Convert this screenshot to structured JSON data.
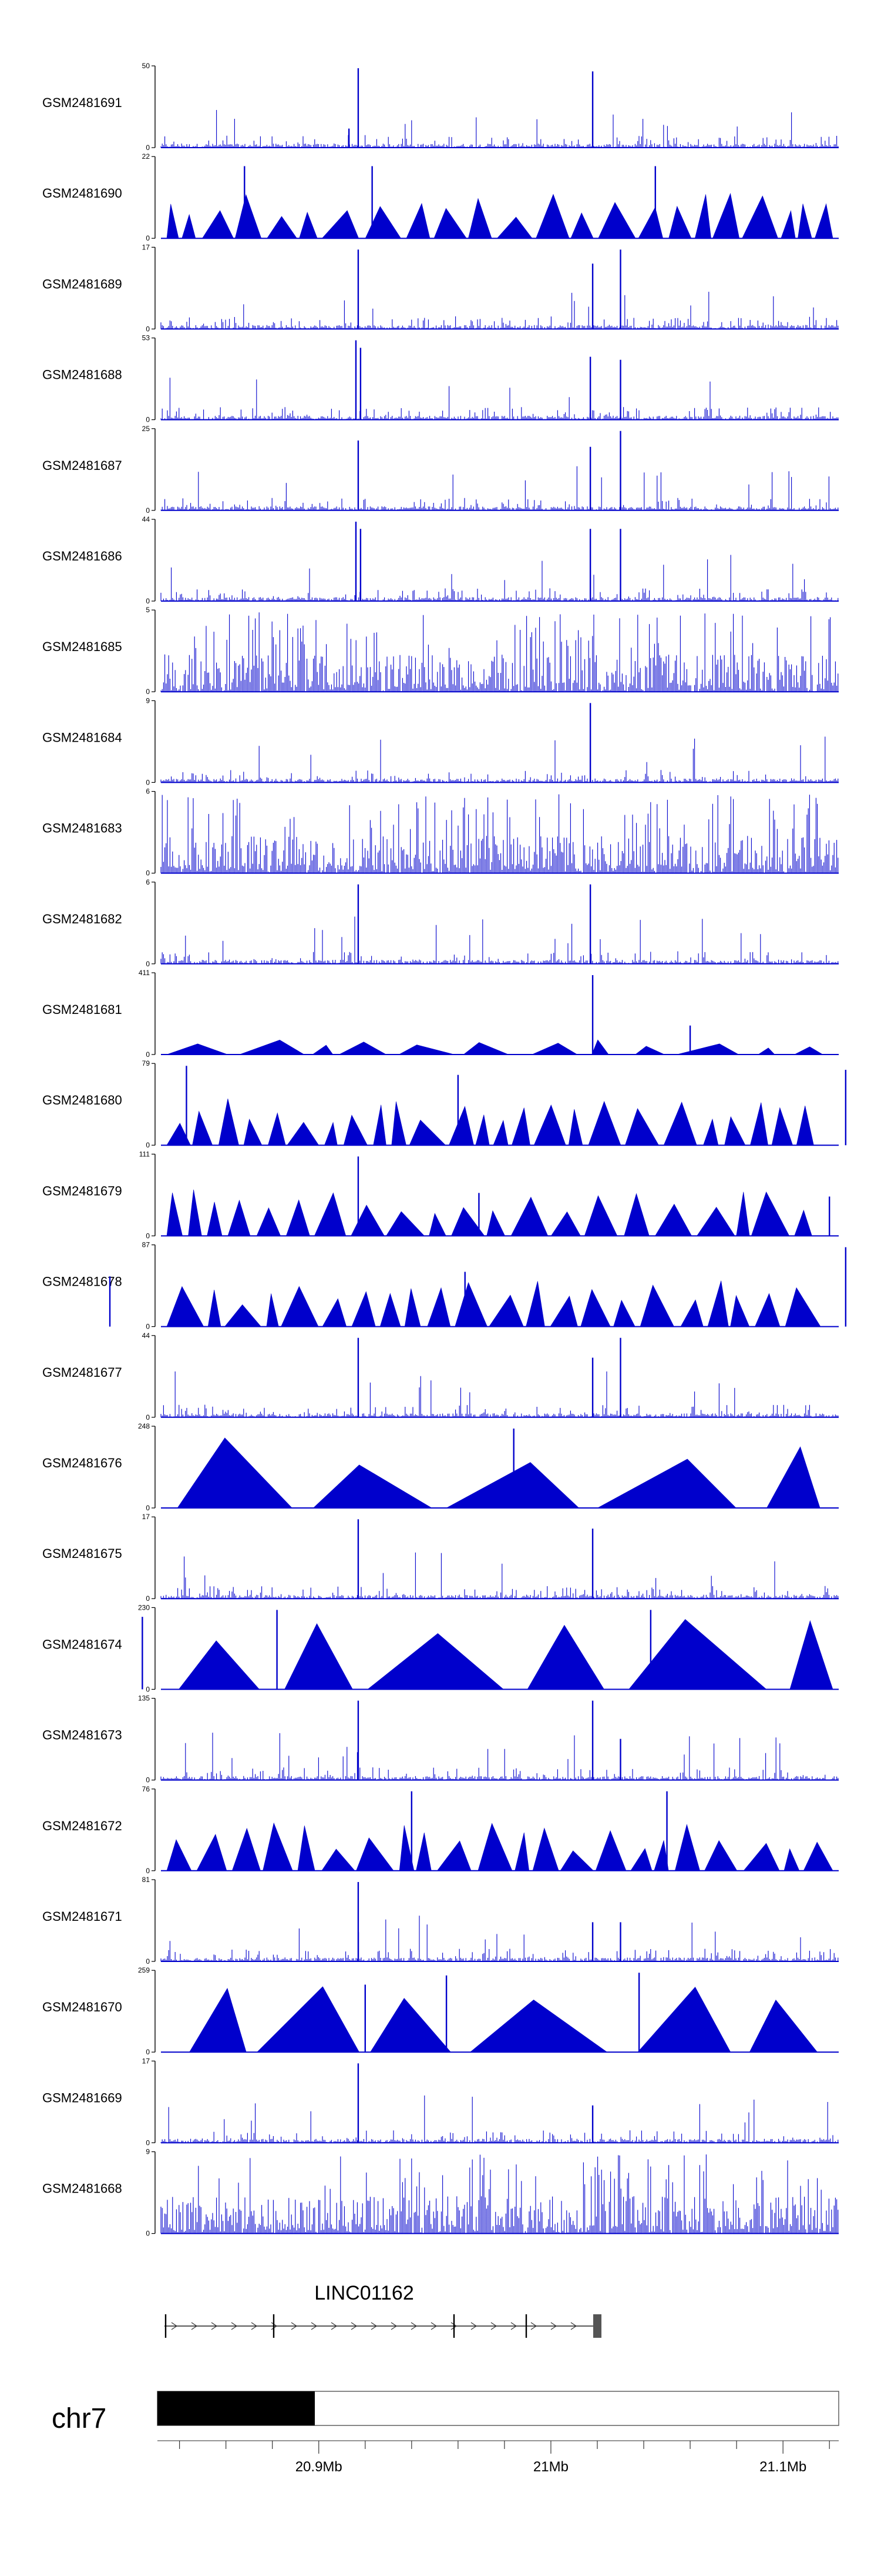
{
  "chart_data": {
    "type": "area",
    "color": "#0000CC",
    "tracks": [
      {
        "name": "GSM2481691",
        "ymax": 50,
        "pattern": "spiky",
        "peaks": [
          [
            20.917,
            50
          ],
          [
            21.018,
            48
          ],
          [
            20.913,
            12
          ]
        ]
      },
      {
        "name": "GSM2481690",
        "ymax": 22,
        "pattern": "triangles",
        "peaks": [
          [
            20.868,
            20
          ],
          [
            20.923,
            20
          ],
          [
            21.045,
            20
          ]
        ]
      },
      {
        "name": "GSM2481689",
        "ymax": 17,
        "pattern": "spiky",
        "peaks": [
          [
            20.917,
            17
          ],
          [
            21.03,
            17
          ],
          [
            21.018,
            14
          ]
        ]
      },
      {
        "name": "GSM2481688",
        "ymax": 53,
        "pattern": "spiky",
        "peaks": [
          [
            20.916,
            53
          ],
          [
            20.918,
            48
          ],
          [
            21.017,
            42
          ],
          [
            21.03,
            40
          ]
        ]
      },
      {
        "name": "GSM2481687",
        "ymax": 25,
        "pattern": "spiky",
        "peaks": [
          [
            20.917,
            22
          ],
          [
            21.017,
            20
          ],
          [
            21.03,
            25
          ]
        ]
      },
      {
        "name": "GSM2481686",
        "ymax": 44,
        "pattern": "spiky",
        "peaks": [
          [
            20.916,
            44
          ],
          [
            20.918,
            40
          ],
          [
            21.017,
            40
          ],
          [
            21.03,
            40
          ]
        ]
      },
      {
        "name": "GSM2481685",
        "ymax": 5,
        "pattern": "dense",
        "peaks": []
      },
      {
        "name": "GSM2481684",
        "ymax": 9,
        "pattern": "spiky",
        "peaks": [
          [
            21.017,
            9
          ]
        ]
      },
      {
        "name": "GSM2481683",
        "ymax": 6,
        "pattern": "dense",
        "peaks": []
      },
      {
        "name": "GSM2481682",
        "ymax": 6,
        "pattern": "spiky",
        "peaks": [
          [
            20.917,
            6
          ],
          [
            21.017,
            6
          ]
        ]
      },
      {
        "name": "GSM2481681",
        "ymax": 411,
        "pattern": "triangles-sparse",
        "peaks": [
          [
            21.018,
            411
          ],
          [
            21.06,
            150
          ]
        ]
      },
      {
        "name": "GSM2481680",
        "ymax": 79,
        "pattern": "triangles",
        "peaks": [
          [
            20.843,
            79
          ],
          [
            20.96,
            70
          ],
          [
            21.127,
            75
          ]
        ]
      },
      {
        "name": "GSM2481679",
        "ymax": 111,
        "pattern": "triangles",
        "peaks": [
          [
            20.917,
            111
          ],
          [
            20.969,
            60
          ],
          [
            21.12,
            55
          ]
        ]
      },
      {
        "name": "GSM2481678",
        "ymax": 87,
        "pattern": "triangles",
        "peaks": [
          [
            20.963,
            60
          ],
          [
            21.127,
            87
          ],
          [
            20.81,
            55
          ]
        ]
      },
      {
        "name": "GSM2481677",
        "ymax": 44,
        "pattern": "spiky",
        "peaks": [
          [
            20.917,
            44
          ],
          [
            21.018,
            33
          ],
          [
            21.03,
            44
          ]
        ]
      },
      {
        "name": "GSM2481676",
        "ymax": 248,
        "pattern": "triangles-big",
        "peaks": [
          [
            20.984,
            248
          ]
        ]
      },
      {
        "name": "GSM2481675",
        "ymax": 17,
        "pattern": "spiky",
        "peaks": [
          [
            20.917,
            17
          ],
          [
            21.018,
            15
          ]
        ]
      },
      {
        "name": "GSM2481674",
        "ymax": 230,
        "pattern": "triangles-big",
        "peaks": [
          [
            20.824,
            210
          ],
          [
            20.882,
            230
          ],
          [
            21.043,
            230
          ]
        ]
      },
      {
        "name": "GSM2481673",
        "ymax": 135,
        "pattern": "spiky",
        "peaks": [
          [
            20.917,
            135
          ],
          [
            21.018,
            135
          ],
          [
            21.03,
            70
          ]
        ]
      },
      {
        "name": "GSM2481672",
        "ymax": 76,
        "pattern": "triangles",
        "peaks": [
          [
            20.94,
            76
          ],
          [
            21.05,
            76
          ]
        ]
      },
      {
        "name": "GSM2481671",
        "ymax": 81,
        "pattern": "spiky",
        "peaks": [
          [
            20.917,
            81
          ],
          [
            21.018,
            40
          ],
          [
            21.03,
            40
          ]
        ]
      },
      {
        "name": "GSM2481670",
        "ymax": 259,
        "pattern": "triangles-big",
        "peaks": [
          [
            20.92,
            220
          ],
          [
            20.955,
            250
          ],
          [
            21.038,
            259
          ]
        ]
      },
      {
        "name": "GSM2481669",
        "ymax": 17,
        "pattern": "spiky",
        "peaks": [
          [
            20.917,
            17
          ],
          [
            21.018,
            8
          ]
        ]
      },
      {
        "name": "GSM2481668",
        "ymax": 9,
        "pattern": "dense",
        "peaks": []
      }
    ],
    "gene": {
      "name": "LINC01162"
    },
    "chromosome": "chr7",
    "axis": {
      "ticks": [
        {
          "pos": 20.9,
          "label": "20.9Mb"
        },
        {
          "pos": 21.0,
          "label": "21Mb"
        },
        {
          "pos": 21.1,
          "label": "21.1Mb"
        }
      ]
    }
  }
}
